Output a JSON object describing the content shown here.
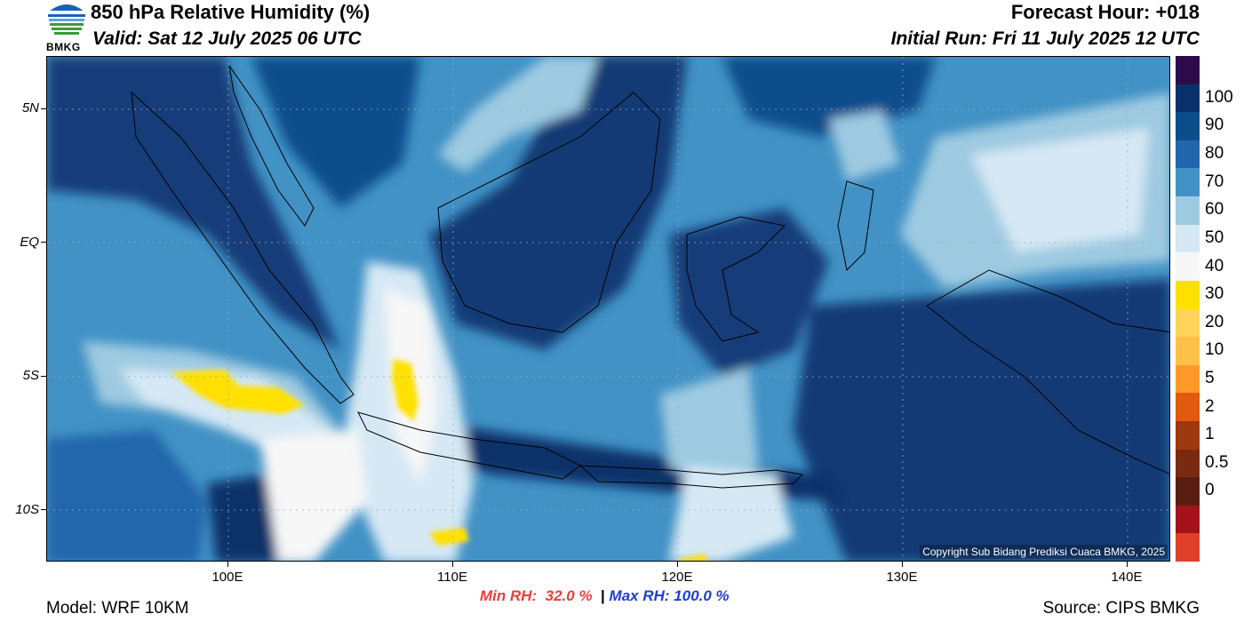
{
  "header": {
    "title": "850 hPa Relative Humidity (%)",
    "valid": "Valid: Sat 12 July 2025 06 UTC",
    "forecast_hour": "Forecast Hour: +018",
    "initial_run": "Initial Run: Fri 11 July 2025 12 UTC"
  },
  "logo": {
    "text": "BMKG"
  },
  "map": {
    "lat_labels": [
      "5N",
      "EQ",
      "5S",
      "10S"
    ],
    "lon_labels": [
      "100E",
      "110E",
      "120E",
      "130E",
      "140E"
    ],
    "copyright": "Copyright Sub Bidang Prediksi Cuaca BMKG, 2025"
  },
  "stats": {
    "min_rh": "Min RH:  32.0 %",
    "separator": "|",
    "max_rh": "Max RH: 100.0 %"
  },
  "footer": {
    "model": "Model: WRF 10KM",
    "source": "Source: CIPS BMKG"
  },
  "colorbar": {
    "labels": [
      "100",
      "90",
      "80",
      "70",
      "60",
      "50",
      "40",
      "30",
      "20",
      "10",
      "5",
      "2",
      "1",
      "0.5",
      "0"
    ],
    "colors": [
      "#2d0a4a",
      "#08306b",
      "#0c4d8c",
      "#2166ac",
      "#4292c6",
      "#9ecae1",
      "#d6e8f4",
      "#f7f7f7",
      "#ffe000",
      "#ffd35a",
      "#ffc04a",
      "#ff9a2a",
      "#e05a10",
      "#a0380e",
      "#7a2a10",
      "#5a1e10",
      "#a5121a",
      "#e0402a"
    ]
  }
}
